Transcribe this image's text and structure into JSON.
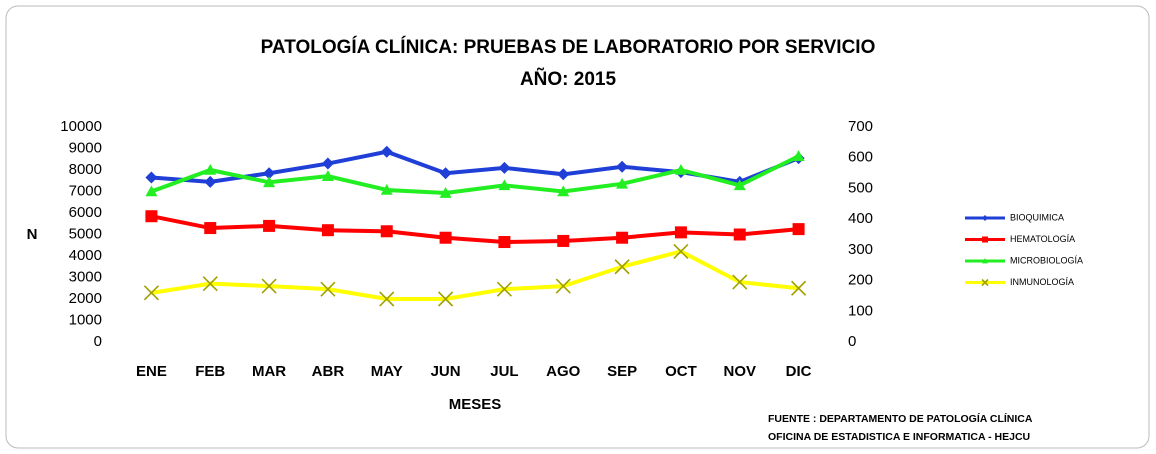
{
  "chart_data": {
    "type": "line",
    "title": "PATOLOGÍA CLÍNICA: PRUEBAS DE LABORATORIO POR SERVICIO",
    "subtitle": "AÑO: 2015",
    "x_label": "MESES",
    "y_label": "N",
    "source": [
      "FUENTE : DEPARTAMENTO DE PATOLOGÍA CLÍNICA",
      "OFICINA DE ESTADISTICA E INFORMATICA - HEJCU"
    ],
    "categories": [
      "ENE",
      "FEB",
      "MAR",
      "ABR",
      "MAY",
      "JUN",
      "JUL",
      "AGO",
      "SEP",
      "OCT",
      "NOV",
      "DIC"
    ],
    "ylim": [
      0,
      10000
    ],
    "yticks": [
      0,
      1000,
      2000,
      3000,
      4000,
      5000,
      6000,
      7000,
      8000,
      9000,
      10000
    ],
    "y2lim": [
      0,
      700
    ],
    "y2ticks": [
      0,
      100,
      200,
      300,
      400,
      500,
      600,
      700
    ],
    "legend": "right",
    "series": [
      {
        "name": "BIOQUIMICA",
        "color": "#1f3fd6",
        "marker": "diamond",
        "values": [
          7650,
          7450,
          7850,
          8300,
          8850,
          7850,
          8100,
          7800,
          8150,
          7900,
          7450,
          8550
        ]
      },
      {
        "name": "HEMATOLOGÍA",
        "color": "#ff0000",
        "marker": "square",
        "values": [
          5850,
          5300,
          5400,
          5200,
          5150,
          4850,
          4650,
          4700,
          4850,
          5100,
          5000,
          5250
        ]
      },
      {
        "name": "MICROBIOLOGÍA",
        "color": "#22ee22",
        "marker": "triangle",
        "axis": "y2",
        "values": [
          490,
          560,
          520,
          540,
          495,
          485,
          510,
          490,
          515,
          560,
          510,
          605
        ]
      },
      {
        "name": "INMUNOLOGÍA",
        "color": "#ffff00",
        "marker": "x",
        "axis": "y2",
        "values": [
          160,
          190,
          182,
          172,
          140,
          140,
          172,
          182,
          245,
          295,
          195,
          175
        ]
      }
    ]
  }
}
